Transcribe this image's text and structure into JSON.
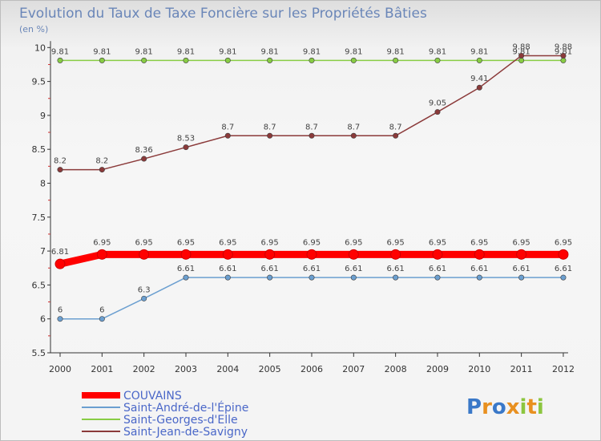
{
  "chart_data": {
    "type": "line",
    "title": "Evolution du Taux de Taxe Foncière sur les Propriétés Bâties",
    "ylabel": "(en %)",
    "xlabel": "",
    "categories": [
      "2000",
      "2001",
      "2002",
      "2003",
      "2004",
      "2005",
      "2006",
      "2007",
      "2008",
      "2009",
      "2010",
      "2011",
      "2012"
    ],
    "ylim": [
      5.5,
      10
    ],
    "yticks": [
      "5.5",
      "6",
      "6.5",
      "7",
      "7.5",
      "8",
      "8.5",
      "9",
      "9.5",
      "10"
    ],
    "series": [
      {
        "name": "COUVAINS",
        "color": "#ff0000",
        "width": 9,
        "marker": 6,
        "values": [
          6.81,
          6.95,
          6.95,
          6.95,
          6.95,
          6.95,
          6.95,
          6.95,
          6.95,
          6.95,
          6.95,
          6.95,
          6.95
        ],
        "labels": [
          "6.81",
          "6.95",
          "6.95",
          "6.95",
          "6.95",
          "6.95",
          "6.95",
          "6.95",
          "6.95",
          "6.95",
          "6.95",
          "6.95",
          "6.95"
        ]
      },
      {
        "name": "Saint-André-de-l'Épine",
        "color": "#6b9fd0",
        "width": 1.5,
        "marker": 3.2,
        "values": [
          6,
          6,
          6.3,
          6.61,
          6.61,
          6.61,
          6.61,
          6.61,
          6.61,
          6.61,
          6.61,
          6.61,
          6.61
        ],
        "labels": [
          "6",
          "6",
          "6.3",
          "6.61",
          "6.61",
          "6.61",
          "6.61",
          "6.61",
          "6.61",
          "6.61",
          "6.61",
          "6.61",
          "6.61"
        ]
      },
      {
        "name": "Saint-Georges-d'Elle",
        "color": "#88cc44",
        "width": 1.5,
        "marker": 3.2,
        "values": [
          9.81,
          9.81,
          9.81,
          9.81,
          9.81,
          9.81,
          9.81,
          9.81,
          9.81,
          9.81,
          9.81,
          9.81,
          9.81
        ],
        "labels": [
          "9.81",
          "9.81",
          "9.81",
          "9.81",
          "9.81",
          "9.81",
          "9.81",
          "9.81",
          "9.81",
          "9.81",
          "9.81",
          "9.81",
          "9.81"
        ]
      },
      {
        "name": "Saint-Jean-de-Savigny",
        "color": "#8b3a3a",
        "width": 1.5,
        "marker": 3.2,
        "values": [
          8.2,
          8.2,
          8.36,
          8.53,
          8.7,
          8.7,
          8.7,
          8.7,
          8.7,
          9.05,
          9.41,
          9.88,
          9.88
        ],
        "labels": [
          "8.2",
          "8.2",
          "8.36",
          "8.53",
          "8.7",
          "8.7",
          "8.7",
          "8.7",
          "8.7",
          "9.05",
          "9.41",
          "9.88",
          "9.88"
        ]
      }
    ],
    "legend_position": "bottom-left",
    "grid": false
  },
  "brand": {
    "text": "Proxiti",
    "colors": [
      "#3a78c8",
      "#e89020",
      "#3a78c8",
      "#e89020",
      "#8cc63f",
      "#e89020",
      "#8cc63f"
    ]
  }
}
